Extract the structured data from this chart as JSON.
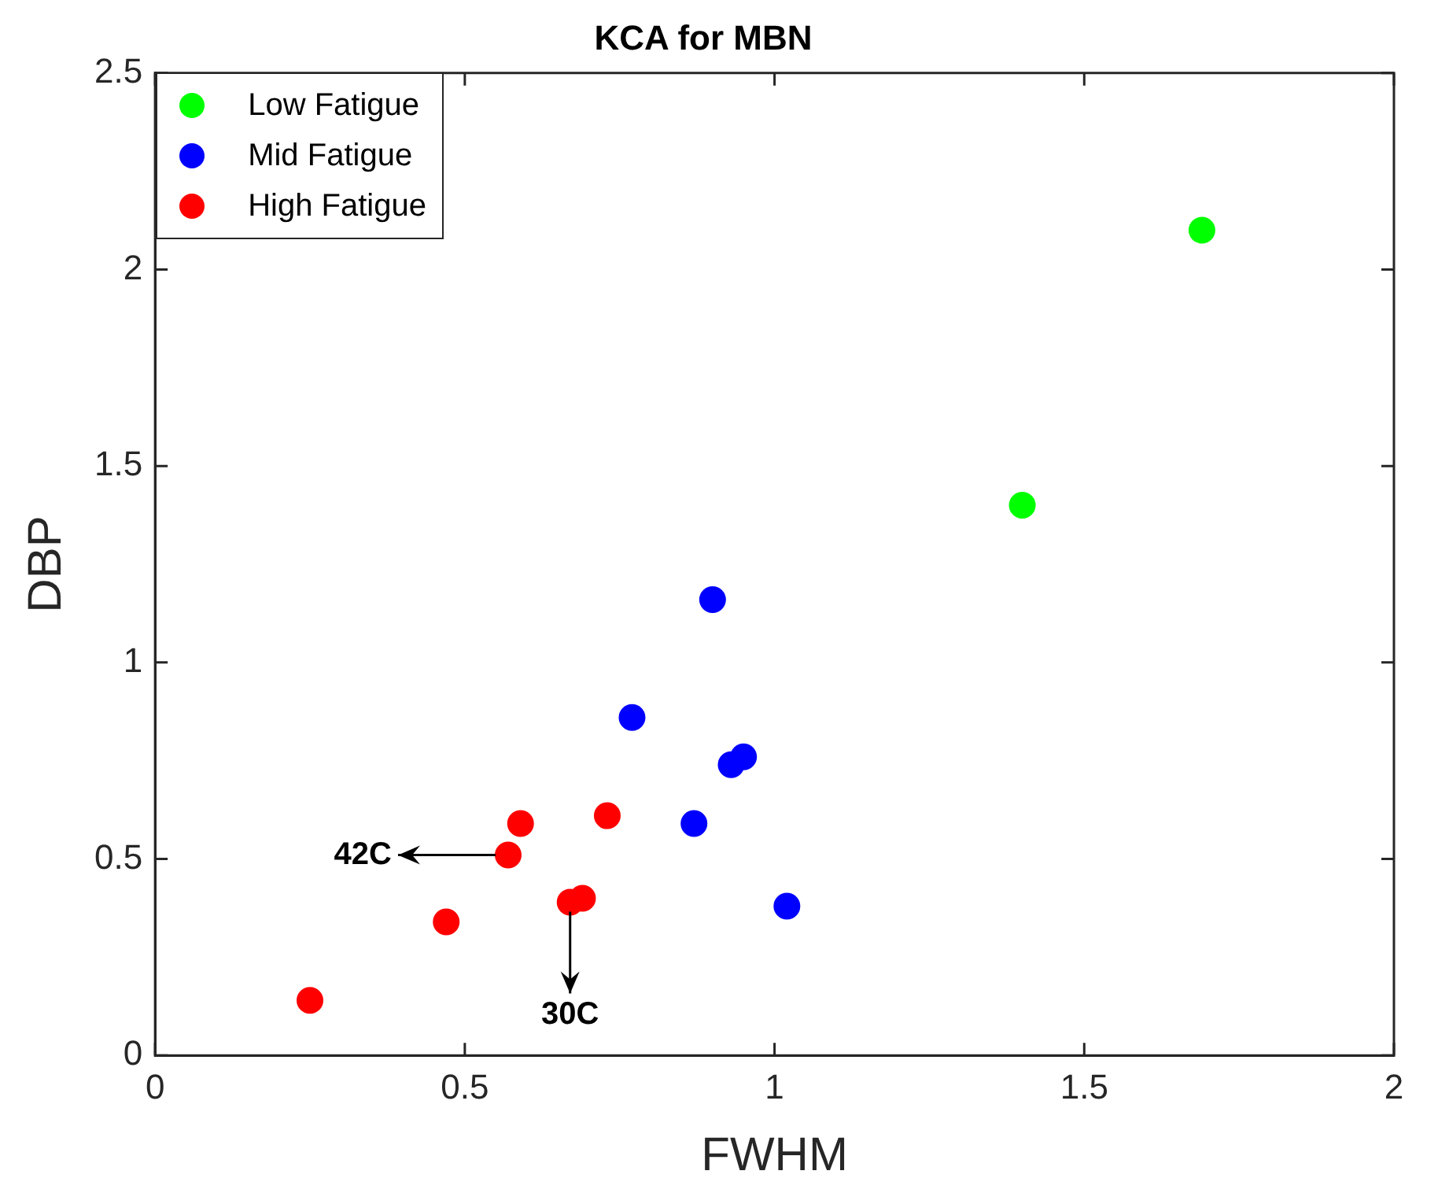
{
  "chart_data": {
    "type": "scatter",
    "title": "KCA for MBN",
    "xlabel": "FWHM",
    "ylabel": "DBP",
    "xlim": [
      0,
      2
    ],
    "ylim": [
      0,
      2.5
    ],
    "xticks": [
      0,
      0.5,
      1,
      1.5,
      2
    ],
    "yticks": [
      0,
      0.5,
      1,
      1.5,
      2,
      2.5
    ],
    "grid": false,
    "legend": "top left",
    "marker": "circle",
    "series": [
      {
        "name": "Low Fatigue",
        "color": "#00ff00",
        "x": [
          1.69,
          1.4
        ],
        "values": [
          2.1,
          1.4
        ]
      },
      {
        "name": "Mid Fatigue",
        "color": "#0000ff",
        "x": [
          0.9,
          0.77,
          0.95,
          0.93,
          0.87,
          1.02
        ],
        "values": [
          1.16,
          0.86,
          0.76,
          0.74,
          0.59,
          0.38
        ]
      },
      {
        "name": "High Fatigue",
        "color": "#ff0000",
        "x": [
          0.25,
          0.47,
          0.57,
          0.59,
          0.67,
          0.69,
          0.73
        ],
        "values": [
          0.14,
          0.34,
          0.51,
          0.59,
          0.39,
          0.4,
          0.61
        ]
      }
    ],
    "annotations": [
      {
        "text": "42C",
        "x": 0.57,
        "y": 0.51
      },
      {
        "text": "30C",
        "x": 0.67,
        "y": 0.39
      }
    ]
  }
}
